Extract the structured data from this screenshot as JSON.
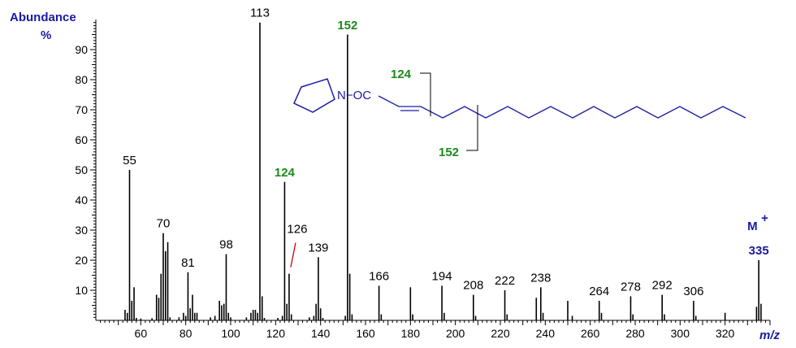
{
  "chart_data": {
    "type": "bar",
    "ylabel_line1": "Abundance",
    "ylabel_line2": "%",
    "xlabel": "m/z",
    "xlim": [
      40,
      340
    ],
    "ylim": [
      0,
      100
    ],
    "x_ticks": [
      60,
      80,
      100,
      120,
      140,
      160,
      180,
      200,
      220,
      240,
      260,
      280,
      300,
      320
    ],
    "y_ticks": [
      10,
      20,
      30,
      40,
      50,
      60,
      70,
      80,
      90
    ],
    "peaks": [
      {
        "x": 53,
        "y": 3.5
      },
      {
        "x": 54,
        "y": 2.5
      },
      {
        "x": 55,
        "y": 50
      },
      {
        "x": 56,
        "y": 6.5
      },
      {
        "x": 57,
        "y": 11
      },
      {
        "x": 58,
        "y": 0.8
      },
      {
        "x": 60,
        "y": 0.6
      },
      {
        "x": 65,
        "y": 0.7
      },
      {
        "x": 67,
        "y": 8.5
      },
      {
        "x": 68,
        "y": 7.5
      },
      {
        "x": 69,
        "y": 15.5
      },
      {
        "x": 70,
        "y": 29
      },
      {
        "x": 71,
        "y": 23
      },
      {
        "x": 72,
        "y": 26
      },
      {
        "x": 73,
        "y": 1
      },
      {
        "x": 77,
        "y": 1
      },
      {
        "x": 79,
        "y": 2.5
      },
      {
        "x": 80,
        "y": 1.5
      },
      {
        "x": 81,
        "y": 16
      },
      {
        "x": 82,
        "y": 4
      },
      {
        "x": 83,
        "y": 8.5
      },
      {
        "x": 84,
        "y": 2.5
      },
      {
        "x": 85,
        "y": 2.5
      },
      {
        "x": 91,
        "y": 1
      },
      {
        "x": 93,
        "y": 1.5
      },
      {
        "x": 95,
        "y": 6.5
      },
      {
        "x": 96,
        "y": 5
      },
      {
        "x": 97,
        "y": 5.5
      },
      {
        "x": 98,
        "y": 22
      },
      {
        "x": 99,
        "y": 2.5
      },
      {
        "x": 100,
        "y": 1
      },
      {
        "x": 107,
        "y": 1
      },
      {
        "x": 109,
        "y": 2.5
      },
      {
        "x": 110,
        "y": 3.5
      },
      {
        "x": 111,
        "y": 3.5
      },
      {
        "x": 112,
        "y": 2.5
      },
      {
        "x": 113,
        "y": 99
      },
      {
        "x": 114,
        "y": 8
      },
      {
        "x": 115,
        "y": 0.8
      },
      {
        "x": 121,
        "y": 0.8
      },
      {
        "x": 123,
        "y": 1.5
      },
      {
        "x": 124,
        "y": 46
      },
      {
        "x": 125,
        "y": 5.5
      },
      {
        "x": 126,
        "y": 15.5
      },
      {
        "x": 127,
        "y": 2
      },
      {
        "x": 135,
        "y": 1
      },
      {
        "x": 137,
        "y": 1.5
      },
      {
        "x": 138,
        "y": 5.5
      },
      {
        "x": 139,
        "y": 21
      },
      {
        "x": 140,
        "y": 4
      },
      {
        "x": 141,
        "y": 0.8
      },
      {
        "x": 151,
        "y": 1.5
      },
      {
        "x": 152,
        "y": 95
      },
      {
        "x": 153,
        "y": 15.5
      },
      {
        "x": 154,
        "y": 2
      },
      {
        "x": 166,
        "y": 11.5
      },
      {
        "x": 167,
        "y": 2
      },
      {
        "x": 180,
        "y": 11
      },
      {
        "x": 181,
        "y": 2
      },
      {
        "x": 194,
        "y": 11.5
      },
      {
        "x": 195,
        "y": 2.5
      },
      {
        "x": 208,
        "y": 8.5
      },
      {
        "x": 209,
        "y": 1.5
      },
      {
        "x": 222,
        "y": 10
      },
      {
        "x": 223,
        "y": 2
      },
      {
        "x": 236,
        "y": 7.5
      },
      {
        "x": 238,
        "y": 11
      },
      {
        "x": 239,
        "y": 2.5
      },
      {
        "x": 250,
        "y": 6.5
      },
      {
        "x": 252,
        "y": 1.5
      },
      {
        "x": 264,
        "y": 6.5
      },
      {
        "x": 265,
        "y": 2.5
      },
      {
        "x": 278,
        "y": 8
      },
      {
        "x": 279,
        "y": 2
      },
      {
        "x": 292,
        "y": 8.5
      },
      {
        "x": 293,
        "y": 2
      },
      {
        "x": 306,
        "y": 6.5
      },
      {
        "x": 307,
        "y": 1.5
      },
      {
        "x": 320,
        "y": 2.5
      },
      {
        "x": 334,
        "y": 4.5
      },
      {
        "x": 335,
        "y": 20
      },
      {
        "x": 336,
        "y": 5.5
      }
    ],
    "peak_labels": [
      {
        "x": 55,
        "text": "55",
        "color": "#000000"
      },
      {
        "x": 70,
        "text": "70",
        "color": "#000000"
      },
      {
        "x": 81,
        "text": "81",
        "color": "#000000"
      },
      {
        "x": 98,
        "text": "98",
        "color": "#000000"
      },
      {
        "x": 113,
        "text": "113",
        "color": "#000000"
      },
      {
        "x": 124,
        "text": "124",
        "color": "#1a8a1a",
        "bold": true
      },
      {
        "x": 126,
        "text": "126",
        "color": "#000000"
      },
      {
        "x": 139,
        "text": "139",
        "color": "#000000"
      },
      {
        "x": 152,
        "text": "152",
        "color": "#1a8a1a",
        "bold": true
      },
      {
        "x": 166,
        "text": "166",
        "color": "#000000"
      },
      {
        "x": 194,
        "text": "194",
        "color": "#000000"
      },
      {
        "x": 208,
        "text": "208",
        "color": "#000000"
      },
      {
        "x": 222,
        "text": "222",
        "color": "#000000"
      },
      {
        "x": 238,
        "text": "238",
        "color": "#000000"
      },
      {
        "x": 264,
        "text": "264",
        "color": "#000000"
      },
      {
        "x": 278,
        "text": "278",
        "color": "#000000"
      },
      {
        "x": 292,
        "text": "292",
        "color": "#000000"
      },
      {
        "x": 306,
        "text": "306",
        "color": "#000000"
      },
      {
        "x": 335,
        "text": "335",
        "color": "#1a1aa0",
        "bold": true
      }
    ],
    "molecular_ion": {
      "label": "M",
      "superscript": "+"
    },
    "structure": {
      "group_text": "N−OC",
      "fragment_labels": [
        "124",
        "152"
      ]
    },
    "colors": {
      "axis": "#000000",
      "highlight": "#1a8a1a",
      "structure": "#1a1aa0",
      "leader": "#cc0000"
    }
  }
}
